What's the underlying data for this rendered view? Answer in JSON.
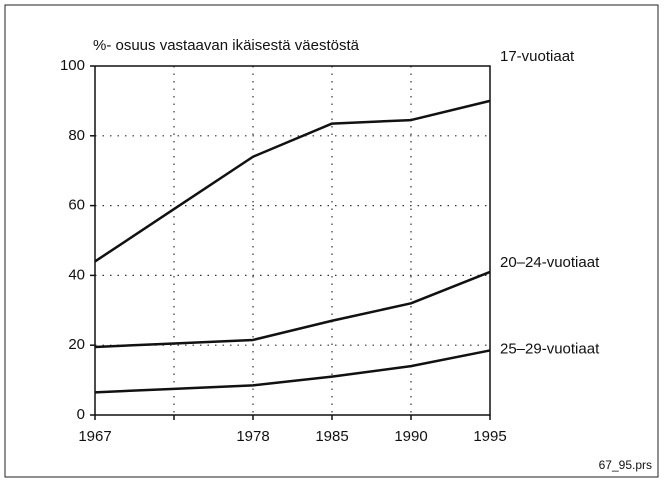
{
  "chart_data": {
    "type": "line",
    "y_label": "%- osuus vastaavan ikäisestä väestöstä",
    "categories": [
      "1967",
      null,
      "1978",
      "1985",
      "1990",
      "1995"
    ],
    "series": [
      {
        "name": "17-vuotiaat",
        "color": "#111111",
        "values": [
          44,
          59,
          74,
          83.5,
          84.5,
          90
        ]
      },
      {
        "name": "20–24-vuotiaat",
        "color": "#111111",
        "values": [
          19.5,
          20.5,
          21.5,
          27,
          32,
          41
        ]
      },
      {
        "name": "25–29-vuotiaat",
        "color": "#111111",
        "values": [
          6.5,
          7.5,
          8.5,
          11,
          14,
          18.5
        ]
      }
    ],
    "ylim": [
      0,
      100
    ],
    "yticks": [
      0,
      20,
      40,
      60,
      80,
      100
    ],
    "grid": true,
    "note": "67_95.prs"
  }
}
